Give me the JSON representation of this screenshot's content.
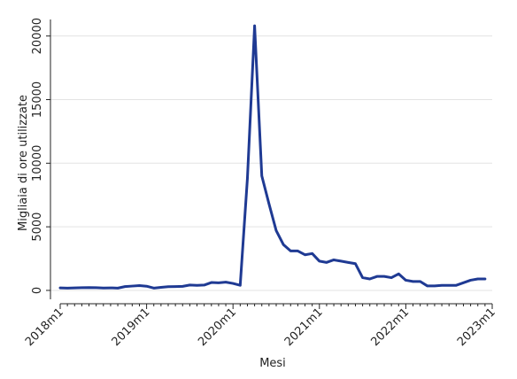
{
  "chart_data": {
    "type": "line",
    "xlabel": "Mesi",
    "ylabel": "Migliaia di ore utilizzate",
    "ylim": [
      -700,
      21300
    ],
    "y_ticks": [
      0,
      5000,
      10000,
      15000,
      20000
    ],
    "y_tick_labels": [
      "0",
      "5000",
      "10000",
      "15000",
      "20000"
    ],
    "x_ticks": [
      "2018m1",
      "2019m1",
      "2020m1",
      "2021m1",
      "2022m1",
      "2023m1"
    ],
    "x_minor_ticks": "monthly",
    "grid": "horizontal",
    "line_color": "#1f3a93",
    "x": [
      "2018m1",
      "2018m2",
      "2018m3",
      "2018m4",
      "2018m5",
      "2018m6",
      "2018m7",
      "2018m8",
      "2018m9",
      "2018m10",
      "2018m11",
      "2018m12",
      "2019m1",
      "2019m2",
      "2019m3",
      "2019m4",
      "2019m5",
      "2019m6",
      "2019m7",
      "2019m8",
      "2019m9",
      "2019m10",
      "2019m11",
      "2019m12",
      "2020m1",
      "2020m2",
      "2020m3",
      "2020m4",
      "2020m5",
      "2020m6",
      "2020m7",
      "2020m8",
      "2020m9",
      "2020m10",
      "2020m11",
      "2020m12",
      "2021m1",
      "2021m2",
      "2021m3",
      "2021m4",
      "2021m5",
      "2021m6",
      "2021m7",
      "2021m8",
      "2021m9",
      "2021m10",
      "2021m11",
      "2021m12",
      "2022m1",
      "2022m2",
      "2022m3",
      "2022m4",
      "2022m5",
      "2022m6",
      "2022m7",
      "2022m8",
      "2022m9",
      "2022m10",
      "2022m11",
      "2022m12"
    ],
    "series": [
      {
        "values": [
          200,
          180,
          200,
          210,
          220,
          210,
          190,
          200,
          180,
          300,
          340,
          380,
          330,
          180,
          240,
          290,
          300,
          320,
          420,
          400,
          420,
          620,
          600,
          650,
          550,
          400,
          8800,
          20800,
          9000,
          6800,
          4700,
          3600,
          3100,
          3100,
          2800,
          2900,
          2300,
          2200,
          2400,
          2300,
          2200,
          2100,
          1000,
          900,
          1100,
          1100,
          1000,
          1300,
          800,
          700,
          700,
          350,
          350,
          400,
          400,
          400,
          600,
          800,
          900,
          900
        ]
      }
    ]
  }
}
